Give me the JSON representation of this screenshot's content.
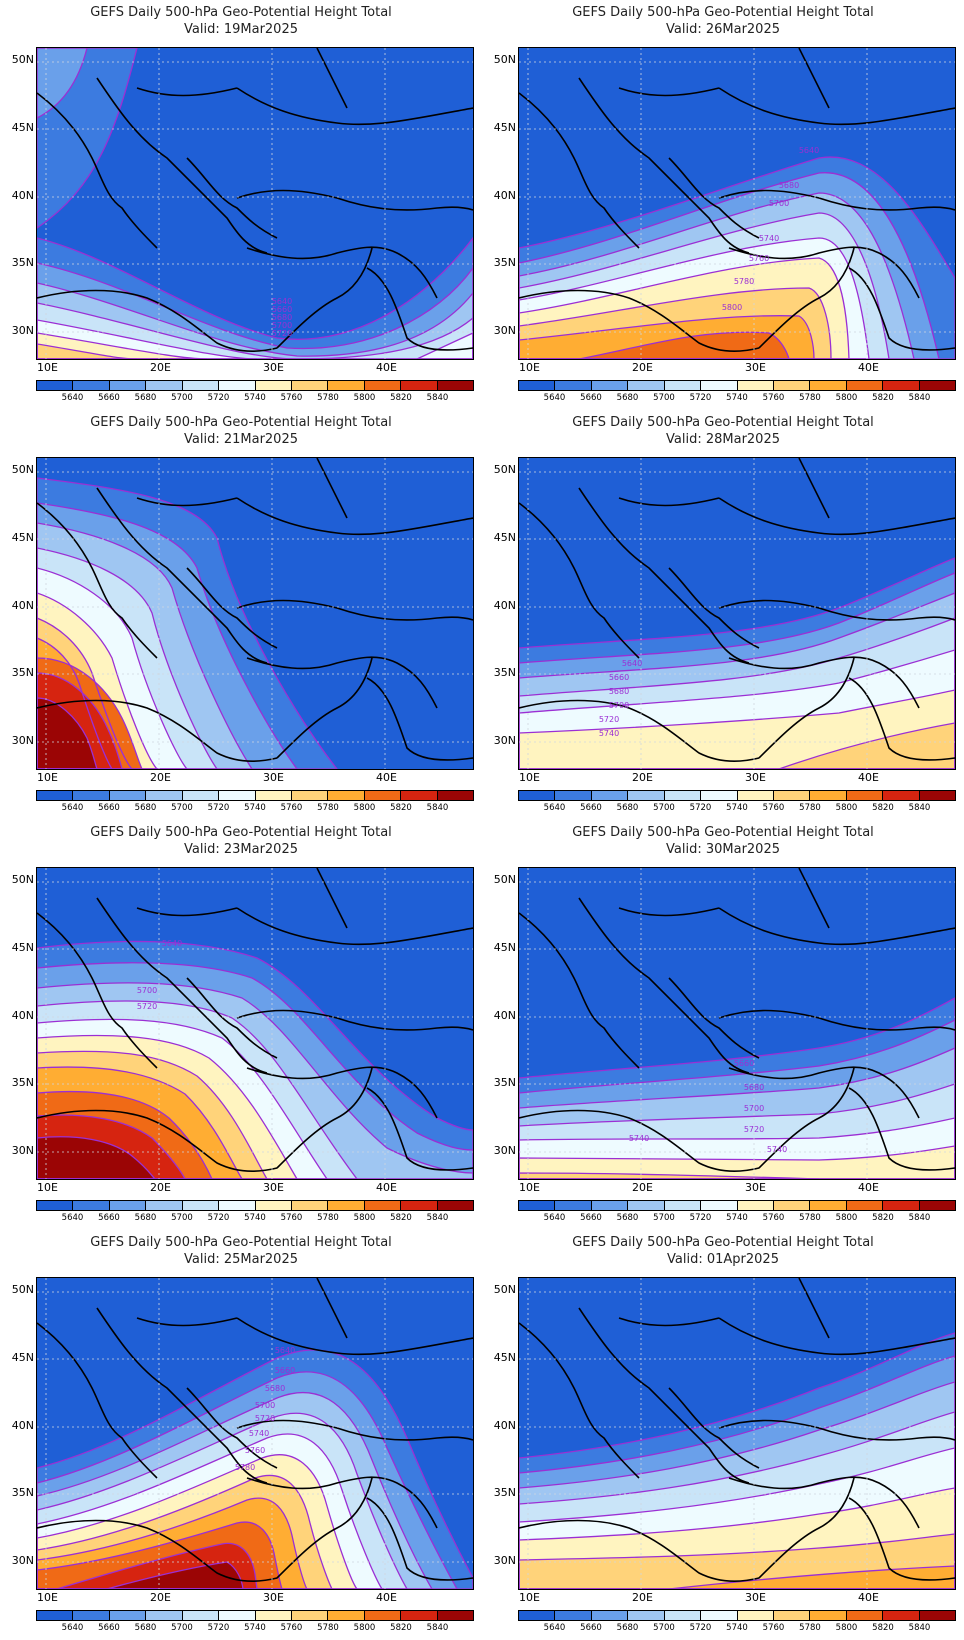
{
  "colorbar": {
    "labels": [
      "5640",
      "5660",
      "5680",
      "5700",
      "5720",
      "5740",
      "5760",
      "5780",
      "5800",
      "5820",
      "5840"
    ],
    "colors": [
      "#1f5fd6",
      "#3c7be0",
      "#6aa0ea",
      "#9fc6f2",
      "#c9e4f8",
      "#eefbff",
      "#fff4c0",
      "#ffd37a",
      "#ffad33",
      "#f06a16",
      "#d62410",
      "#9b0505"
    ]
  },
  "axes": {
    "y_labels": [
      "50N",
      "45N",
      "40N",
      "35N",
      "30N"
    ],
    "x_labels": [
      "10E",
      "20E",
      "30E",
      "40E"
    ]
  },
  "panels": [
    {
      "title": "GEFS Daily 500-hPa Geo-Potential Height Total",
      "valid": "Valid: 19Mar2025",
      "contour_labels": [
        "5640",
        "5660",
        "5680",
        "5700",
        "5720"
      ]
    },
    {
      "title": "GEFS Daily 500-hPa Geo-Potential Height Total",
      "valid": "Valid: 26Mar2025",
      "contour_labels": [
        "5640",
        "5680",
        "5700",
        "5740",
        "5760",
        "5780",
        "5800"
      ]
    },
    {
      "title": "GEFS Daily 500-hPa Geo-Potential Height Total",
      "valid": "Valid: 21Mar2025",
      "contour_labels": []
    },
    {
      "title": "GEFS Daily 500-hPa Geo-Potential Height Total",
      "valid": "Valid: 28Mar2025",
      "contour_labels": [
        "5640",
        "5660",
        "5680",
        "5700",
        "5720",
        "5740"
      ]
    },
    {
      "title": "GEFS Daily 500-hPa Geo-Potential Height Total",
      "valid": "Valid: 23Mar2025",
      "contour_labels": [
        "5640",
        "5700",
        "5720"
      ]
    },
    {
      "title": "GEFS Daily 500-hPa Geo-Potential Height Total",
      "valid": "Valid: 30Mar2025",
      "contour_labels": [
        "5660",
        "5680",
        "5700",
        "5720",
        "5740",
        "5740"
      ]
    },
    {
      "title": "GEFS Daily 500-hPa Geo-Potential Height Total",
      "valid": "Valid: 25Mar2025",
      "contour_labels": [
        "5640",
        "5660",
        "5680",
        "5700",
        "5720",
        "5740",
        "5760",
        "5780"
      ]
    },
    {
      "title": "GEFS Daily 500-hPa Geo-Potential Height Total",
      "valid": "Valid: 01Apr2025",
      "contour_labels": []
    }
  ]
}
